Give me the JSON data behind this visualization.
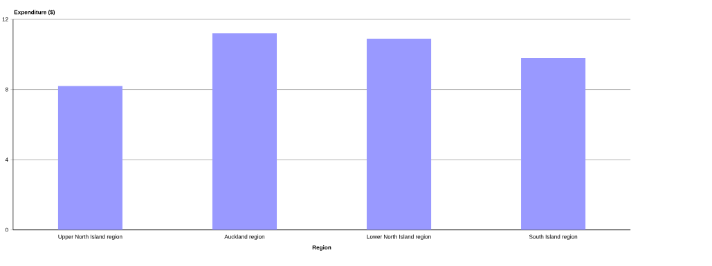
{
  "chart_data": {
    "type": "bar",
    "xlabel": "Region",
    "ylabel": "Expenditure ($)",
    "categories": [
      "Upper North Island region",
      "Auckland  region",
      "Lower North Island region",
      "South Island region"
    ],
    "values": [
      8.2,
      11.2,
      10.9,
      9.8
    ],
    "color": "#9999ff",
    "ylim": [
      0,
      12
    ],
    "yticks": [
      0,
      4,
      8,
      12
    ],
    "grid": "y"
  }
}
